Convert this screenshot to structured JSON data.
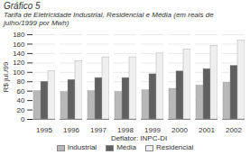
{
  "chart_data": {
    "type": "bar",
    "title": "Gráfico 5",
    "subtitle": "Tarifa de Eletricidade Industrial, Residencial e Média (em reais de julho/1999 por Mwh)",
    "xlabel": "Deflator: INPC-DI",
    "ylabel": "R$ jul./99",
    "categories": [
      "1995",
      "1996",
      "1997",
      "1998",
      "1999",
      "2000",
      "2001",
      "2002"
    ],
    "series": [
      {
        "name": "Industrial",
        "color": "#b8b8b8",
        "values": [
          60,
          58,
          60,
          58,
          62,
          65,
          72,
          78
        ]
      },
      {
        "name": "Média",
        "color": "#606060",
        "values": [
          80,
          84,
          88,
          88,
          96,
          102,
          107,
          114
        ]
      },
      {
        "name": "Residencial",
        "color": "#efefef",
        "values": [
          102,
          124,
          132,
          132,
          140,
          148,
          156,
          167
        ]
      }
    ],
    "ylim": [
      0,
      180
    ],
    "yticks": [
      0,
      20,
      40,
      60,
      80,
      100,
      120,
      140,
      160,
      180
    ],
    "grid": true,
    "legend": "bottom"
  }
}
